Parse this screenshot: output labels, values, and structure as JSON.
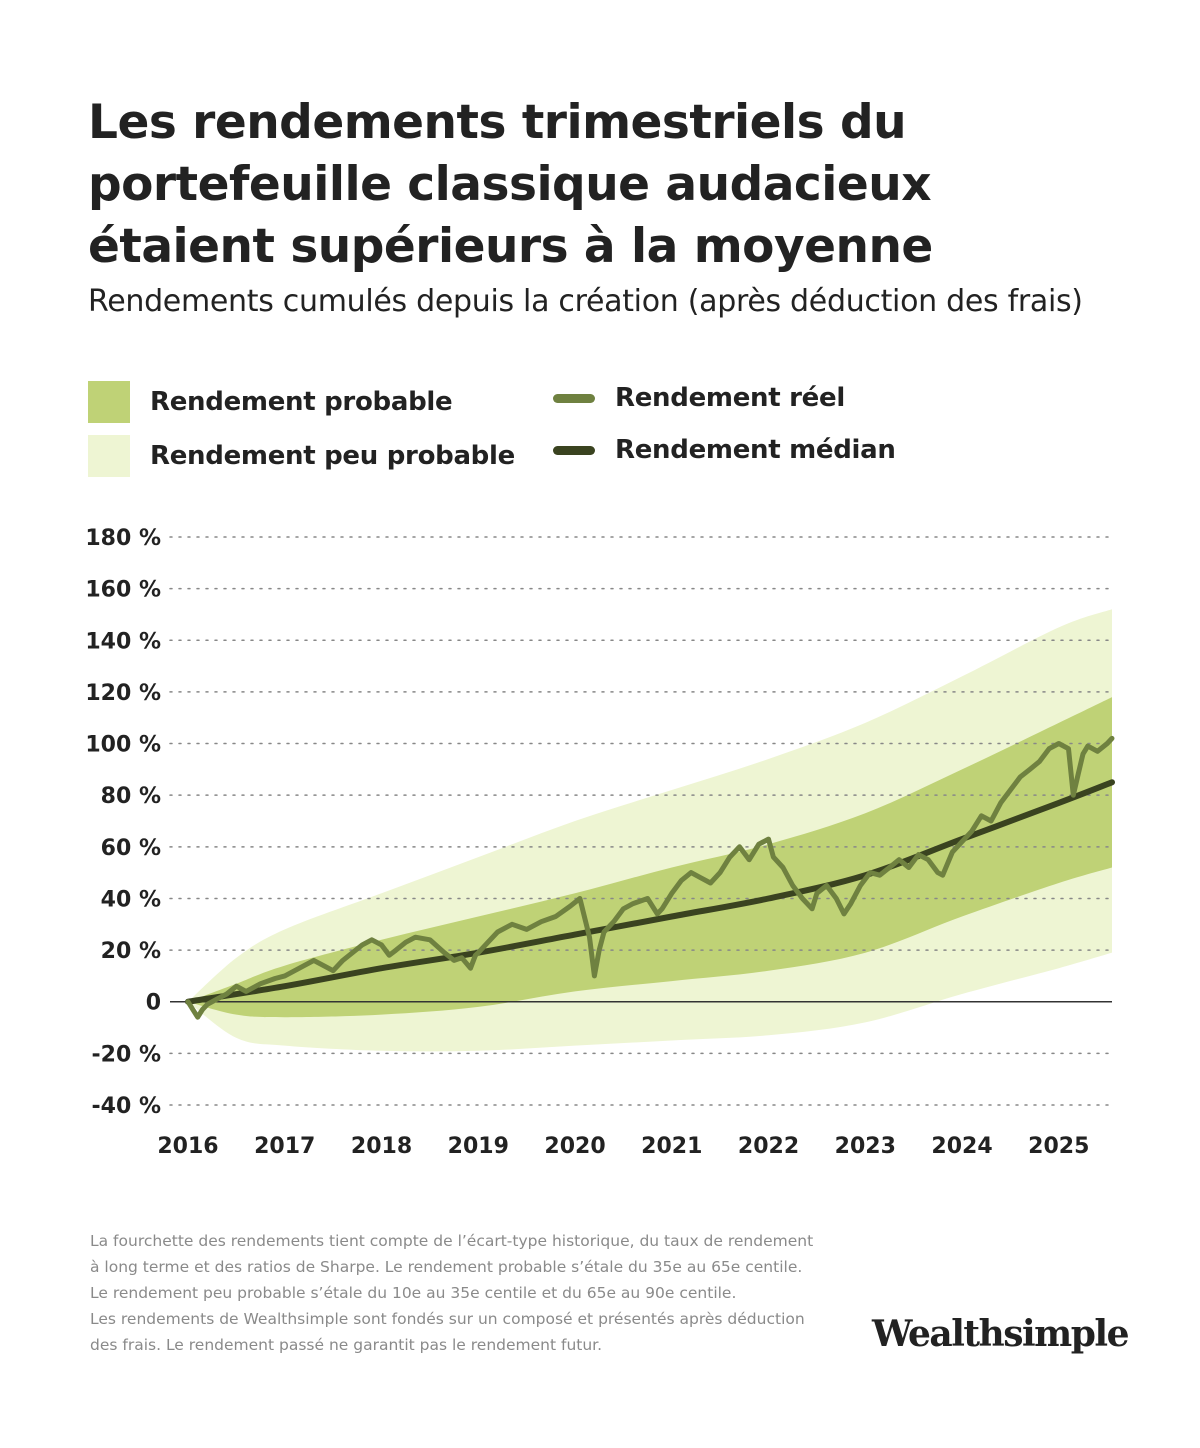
{
  "title": "Les rendements trimestriels du portefeuille classique audacieux étaient supérieurs à la moyenne",
  "subtitle": "Rendements cumulés depuis la création (après déduction des frais)",
  "legend": {
    "likely": {
      "label": "Rendement probable",
      "color": "#bfd276"
    },
    "unlikely": {
      "label": "Rendement peu probable",
      "color": "#eef5d3"
    },
    "actual": {
      "label": "Rendement réel",
      "color": "#6f8140"
    },
    "median": {
      "label": "Rendement médian",
      "color": "#3a4320"
    }
  },
  "footnote": [
    "La fourchette des rendements tient compte de l’écart-type historique, du taux de rendement",
    "à long terme et des ratios de Sharpe. Le rendement probable s’étale du 35e au 65e centile.",
    "Le rendement peu probable s’étale du 10e au 35e centile et du 65e au 90e centile.",
    "Les rendements de Wealthsimple sont fondés sur un composé et présentés après déduction",
    "des frais. Le rendement passé ne garantit pas le rendement futur."
  ],
  "logo": "Wealthsimple",
  "chart_data": {
    "type": "area",
    "title": "",
    "xlabel": "",
    "ylabel": "",
    "ylim": [
      -40,
      180
    ],
    "xlim": [
      2016.0,
      2025.55
    ],
    "y_ticks": [
      180,
      160,
      140,
      120,
      100,
      80,
      60,
      40,
      20,
      0,
      -20,
      -40
    ],
    "y_tick_labels": [
      "180 %",
      "160 %",
      "140 %",
      "120 %",
      "100 %",
      "80 %",
      "60 %",
      "40 %",
      "20 %",
      "0",
      "-20 %",
      "-40 %"
    ],
    "x_ticks": [
      2016,
      2017,
      2018,
      2019,
      2020,
      2021,
      2022,
      2023,
      2024,
      2025
    ],
    "x_tick_labels": [
      "2016",
      "2017",
      "2018",
      "2019",
      "2020",
      "2021",
      "2022",
      "2023",
      "2024",
      "2025"
    ],
    "grid": "horizontal dotted",
    "legend_position": "top",
    "bands": {
      "x": [
        2016.0,
        2016.5,
        2017,
        2018,
        2019,
        2020,
        2021,
        2022,
        2023,
        2024,
        2025,
        2025.55
      ],
      "p10": [
        0,
        -14,
        -17,
        -19,
        -19,
        -17,
        -15,
        -13,
        -8,
        3,
        13,
        19
      ],
      "p35": [
        0,
        -5,
        -6,
        -5,
        -2,
        4,
        8,
        12,
        19,
        33,
        46,
        52
      ],
      "p65": [
        0,
        7,
        14,
        24,
        33,
        42,
        52,
        61,
        73,
        90,
        108,
        118
      ],
      "p90": [
        0,
        17,
        28,
        42,
        56,
        70,
        82,
        94,
        108,
        126,
        145,
        152
      ]
    },
    "series": [
      {
        "name": "Rendement réel",
        "x": [
          2016.0,
          2016.05,
          2016.1,
          2016.15,
          2016.2,
          2016.3,
          2016.4,
          2016.5,
          2016.6,
          2016.75,
          2016.9,
          2017.0,
          2017.15,
          2017.3,
          2017.4,
          2017.5,
          2017.6,
          2017.7,
          2017.8,
          2017.9,
          2018.0,
          2018.08,
          2018.15,
          2018.25,
          2018.35,
          2018.5,
          2018.65,
          2018.75,
          2018.83,
          2018.92,
          2018.97,
          2019.0,
          2019.1,
          2019.2,
          2019.35,
          2019.5,
          2019.65,
          2019.8,
          2019.95,
          2020.05,
          2020.15,
          2020.2,
          2020.25,
          2020.3,
          2020.4,
          2020.5,
          2020.6,
          2020.75,
          2020.85,
          2020.9,
          2021.0,
          2021.1,
          2021.2,
          2021.3,
          2021.4,
          2021.5,
          2021.6,
          2021.7,
          2021.8,
          2021.9,
          2022.0,
          2022.05,
          2022.15,
          2022.25,
          2022.35,
          2022.45,
          2022.5,
          2022.6,
          2022.7,
          2022.78,
          2022.85,
          2022.95,
          2023.05,
          2023.15,
          2023.25,
          2023.35,
          2023.45,
          2023.55,
          2023.65,
          2023.75,
          2023.8,
          2023.9,
          2024.0,
          2024.1,
          2024.2,
          2024.3,
          2024.4,
          2024.5,
          2024.6,
          2024.7,
          2024.8,
          2024.9,
          2025.0,
          2025.1,
          2025.15,
          2025.2,
          2025.25,
          2025.3,
          2025.4,
          2025.5,
          2025.55
        ],
        "y": [
          0,
          -3,
          -6,
          -3,
          -1,
          1,
          3,
          6,
          4,
          7,
          9,
          10,
          13,
          16,
          14,
          12,
          16,
          19,
          22,
          24,
          22,
          18,
          20,
          23,
          25,
          24,
          19,
          16,
          17,
          13,
          18,
          19,
          23,
          27,
          30,
          28,
          31,
          33,
          37,
          40,
          25,
          10,
          20,
          27,
          31,
          36,
          38,
          40,
          34,
          36,
          42,
          47,
          50,
          48,
          46,
          50,
          56,
          60,
          55,
          61,
          63,
          56,
          52,
          45,
          40,
          36,
          42,
          45,
          40,
          34,
          38,
          45,
          50,
          49,
          52,
          55,
          52,
          57,
          55,
          50,
          49,
          58,
          62,
          66,
          72,
          70,
          77,
          82,
          87,
          90,
          93,
          98,
          100,
          98,
          80,
          88,
          96,
          99,
          97,
          100,
          102
        ]
      },
      {
        "name": "Rendement médian",
        "x": [
          2016.0,
          2017,
          2018,
          2019,
          2020,
          2021,
          2022,
          2023,
          2024,
          2025,
          2025.55
        ],
        "y": [
          0,
          6,
          13,
          19,
          26,
          33,
          40,
          49,
          63,
          77,
          85
        ]
      }
    ]
  }
}
